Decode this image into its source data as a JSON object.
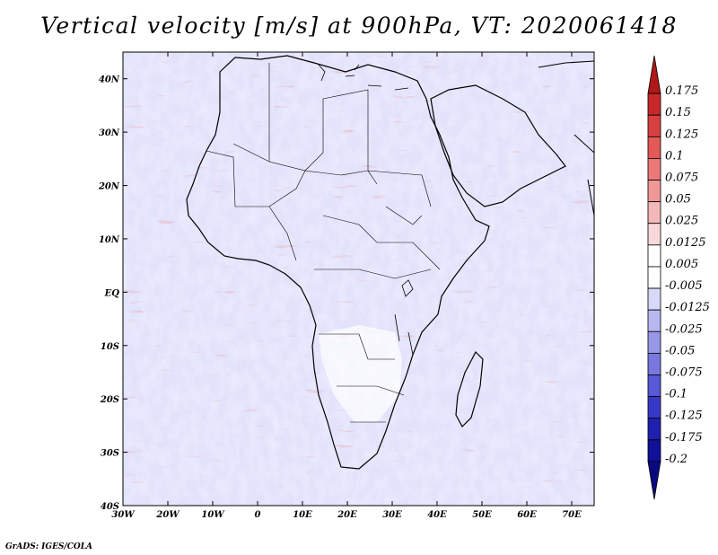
{
  "title": "Vertical velocity [m/s] at 900hPa, VT: 2020061418",
  "credit": "GrADS: IGES/COLA",
  "colors": {
    "background_field": "#c8c8f8",
    "positive_streak": "#e06060",
    "negative_patch": "#7070e0",
    "coastline": "#000000"
  },
  "chart_data": {
    "type": "heatmap",
    "title": "Vertical velocity [m/s] at 900hPa, VT: 2020061418",
    "x_ticks": [
      "30W",
      "20W",
      "10W",
      "0",
      "10E",
      "20E",
      "30E",
      "40E",
      "50E",
      "60E",
      "70E"
    ],
    "y_ticks": [
      "40N",
      "30N",
      "20N",
      "10N",
      "EQ",
      "10S",
      "20S",
      "30S",
      "40S"
    ],
    "lon_range": [
      -30,
      75
    ],
    "lat_range": [
      -40,
      45
    ],
    "colorbar": {
      "levels": [
        "0.175",
        "0.15",
        "0.125",
        "0.1",
        "0.075",
        "0.05",
        "0.025",
        "0.0125",
        "0.005",
        "-0.005",
        "-0.0125",
        "-0.025",
        "-0.05",
        "-0.075",
        "-0.1",
        "-0.125",
        "-0.175",
        "-0.2"
      ],
      "colors": [
        "#b01818",
        "#c82828",
        "#d84040",
        "#e45858",
        "#ec7878",
        "#f09898",
        "#f4b8b8",
        "#f8d8d8",
        "#ffffff",
        "#ffffff",
        "#d8d8f8",
        "#b8b8f0",
        "#9898e8",
        "#7878e0",
        "#5858d8",
        "#3838c8",
        "#2020b0",
        "#101098",
        "#0a0a80"
      ]
    }
  }
}
